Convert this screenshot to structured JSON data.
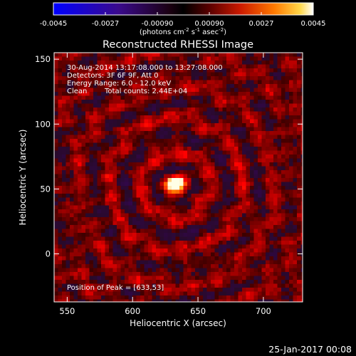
{
  "chart_data": {
    "type": "heatmap",
    "title": "Reconstructed RHESSI Image",
    "xlabel": "Heliocentric X (arcsec)",
    "ylabel": "Heliocentric Y (arcsec)",
    "xlim": [
      540,
      730
    ],
    "ylim": [
      -37,
      155
    ],
    "x_ticks": [
      550,
      600,
      650,
      700
    ],
    "y_ticks": [
      0,
      50,
      100,
      150
    ],
    "grid": false,
    "annotations": [
      "30-Aug-2014 13:17:08.000 to 13:27:08.000",
      "Detectors: 3F 6F 9F, Att 0",
      "Energy Range: 6.0 - 12.0 keV",
      "Clean",
      "Total counts: 2.44E+04"
    ],
    "peak_label": "Position of Peak = [633,53]",
    "peak": {
      "x": 633,
      "y": 53
    },
    "colorbar": {
      "label_text": "(photons cm",
      "label_sup1": "-2",
      "label_mid1": " s",
      "label_sup2": "-1",
      "label_mid2": " asec",
      "label_sup3": "-2",
      "label_end": ")",
      "ticks": [
        "-0.0045",
        "-0.0027",
        "-0.00090",
        "0.00090",
        "0.0027",
        "0.0045"
      ],
      "range": [
        -0.0045,
        0.0045
      ]
    }
  },
  "timestamp": "25-Jan-2017 00:08",
  "colors": {
    "background": "#000000",
    "foreground": "#ffffff"
  }
}
